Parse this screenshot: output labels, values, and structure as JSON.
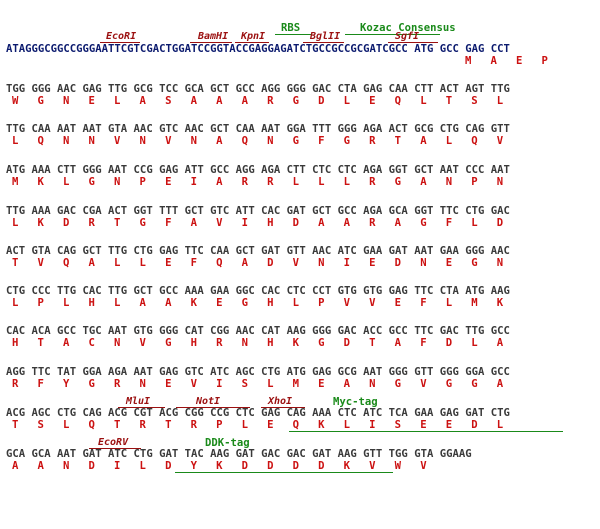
{
  "sequence_map": {
    "features_top": [
      {
        "label": "RBS"
      },
      {
        "label": "Kozac Consensus"
      }
    ],
    "enzymes_top": [
      {
        "label": "EcoRI"
      },
      {
        "label": "BamHI"
      },
      {
        "label": "KpnI"
      },
      {
        "label": "BglII"
      },
      {
        "label": "SgfI"
      }
    ],
    "rows": [
      {
        "dna": "ATAGGGCGGCCGGGAATTCGTCGACTGGATCCGGTACCGAGGAGATCTGCCGCCGCGATCGCC ATG GCC GAG CCT",
        "aa": "M   A   E   P"
      },
      {
        "dna": "TGG GGG AAC GAG TTG GCG TCC GCA GCT GCC AGG GGG GAC CTA GAG CAA CTT ACT AGT TTG",
        "aa": "W   G   N   E   L   A   S   A   A   A   R   G   D   L   E   Q   L   T   S   L"
      },
      {
        "dna": "TTG CAA AAT AAT GTA AAC GTC AAC GCT CAA AAT GGA TTT GGG AGA ACT GCG CTG CAG GTT",
        "aa": "L   Q   N   N   V   N   V   N   A   Q   N   G   F   G   R   T   A   L   Q   V"
      },
      {
        "dna": "ATG AAA CTT GGG AAT CCG GAG ATT GCC AGG AGA CTT CTC CTC AGA GGT GCT AAT CCC AAT",
        "aa": "M   K   L   G   N   P   E   I   A   R   R   L   L   L   R   G   A   N   P   N"
      },
      {
        "dna": "TTG AAA GAC CGA ACT GGT TTT GCT GTC ATT CAC GAT GCT GCC AGA GCA GGT TTC CTG GAC",
        "aa": "L   K   D   R   T   G   F   A   V   I   H   D   A   A   R   A   G   F   L   D"
      },
      {
        "dna": "ACT GTA CAG GCT TTG CTG GAG TTC CAA GCT GAT GTT AAC ATC GAA GAT AAT GAA GGG AAC",
        "aa": "T   V   Q   A   L   L   E   F   Q   A   D   V   N   I   E   D   N   E   G   N"
      },
      {
        "dna": "CTG CCC TTG CAC TTG GCT GCC AAA GAA GGC CAC CTC CCT GTG GTG GAG TTC CTA ATG AAG",
        "aa": "L   P   L   H   L   A   A   K   E   G   H   L   P   V   V   E   F   L   M   K"
      },
      {
        "dna": "CAC ACA GCC TGC AAT GTG GGG CAT CGG AAC CAT AAG GGG GAC ACC GCC TTC GAC TTG GCC",
        "aa": "H   T   A   C   N   V   G   H   R   N   H   K   G   D   T   A   F   D   L   A"
      },
      {
        "dna": "AGG TTC TAT GGA AGA AAT GAG GTC ATC AGC CTG ATG GAG GCG AAT GGG GTT GGG GGA GCC",
        "aa": "R   F   Y   G   R   N   E   V   I   S   L   M   E   A   N   G   V   G   G   A"
      },
      {
        "dna": "ACG AGC CTG CAG ACG CGT ACG CGG CCG CTC GAG CAG AAA CTC ATC TCA GAA GAG GAT CTG",
        "aa": "T   S   L   Q   T   R   T   R   P   L   E   Q   K   L   I   S   E   E   D   L"
      },
      {
        "dna": "GCA GCA AAT GAT ATC CTG GAT TAC AAG GAT GAC GAC GAT AAG GTT TGG GTA GGAAG",
        "aa": "A   A   N   D   I   L   D   Y   K   D   D   D   D   K   V   W   V"
      }
    ],
    "enzymes_mid_row10": [
      {
        "label": "MluI"
      },
      {
        "label": "NotI"
      },
      {
        "label": "XhoI"
      }
    ],
    "features_mid_row10": [
      {
        "label": "Myc-tag"
      }
    ],
    "enzymes_mid_row11": [
      {
        "label": "EcoRV"
      }
    ],
    "features_mid_row11": [
      {
        "label": "DDK-tag"
      }
    ],
    "colors": {
      "dna": "#3a3a3a",
      "dna_highlight": "#0b1a6e",
      "amino_acid": "#cc1111",
      "enzyme": "#9b1010",
      "feature": "#1a8a1a"
    }
  }
}
